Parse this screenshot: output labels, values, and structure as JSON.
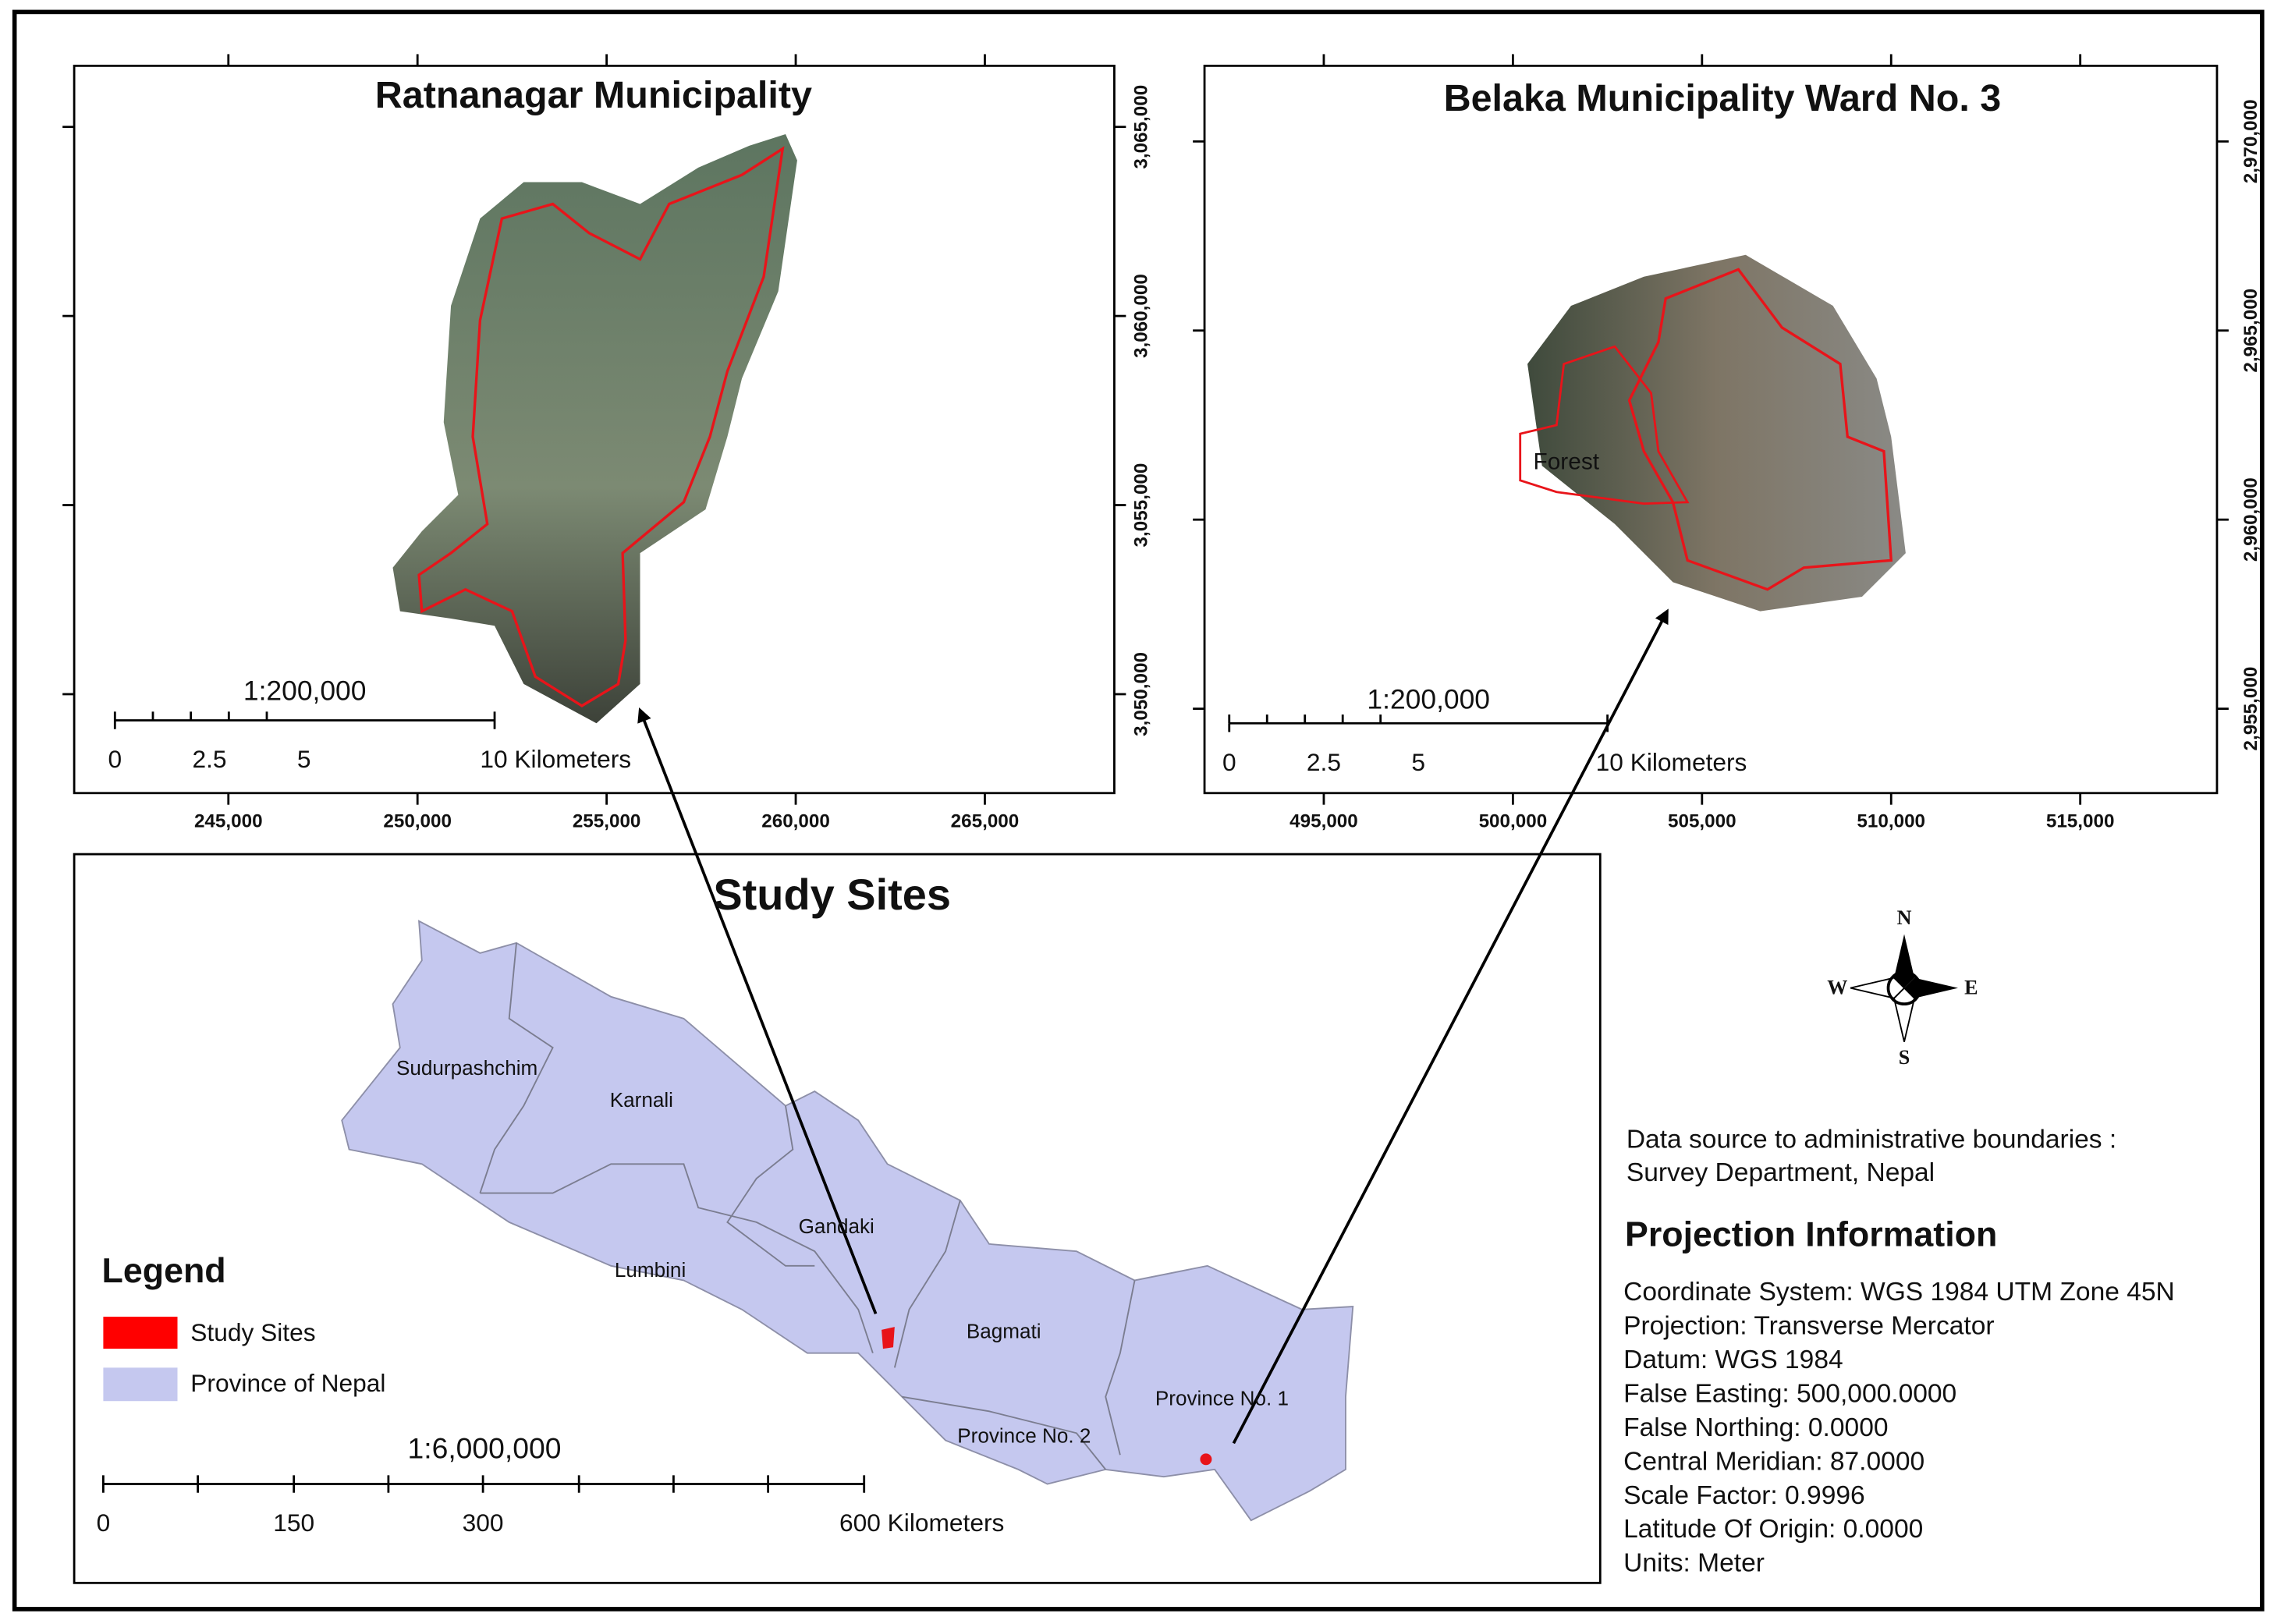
{
  "panels": [
    {
      "title": "Ratnanagar Municipality",
      "x_ticks": [
        "245,000",
        "250,000",
        "255,000",
        "260,000",
        "265,000"
      ],
      "y_ticks": [
        "3,065,000",
        "3,060,000",
        "3,055,000",
        "3,050,000"
      ],
      "scale": "1:200,000",
      "scale_labels": [
        "0",
        "2.5",
        "5",
        "10 Kilometers"
      ]
    },
    {
      "title": "Belaka Municipality Ward No. 3",
      "x_ticks": [
        "495,000",
        "500,000",
        "505,000",
        "510,000",
        "515,000"
      ],
      "y_ticks": [
        "2,970,000",
        "2,965,000",
        "2,960,000",
        "2,955,000"
      ],
      "scale": "1:200,000",
      "scale_labels": [
        "0",
        "2.5",
        "5",
        "10 Kilometers"
      ],
      "label": "Forest"
    }
  ],
  "main_map": {
    "title": "Study Sites",
    "provinces": [
      "Sudurpashchim",
      "Karnali",
      "Gandaki",
      "Lumbini",
      "Bagmati",
      "Province No. 1",
      "Province No. 2"
    ],
    "scale": "1:6,000,000",
    "scale_labels": [
      "0",
      "150",
      "300",
      "600 Kilometers"
    ]
  },
  "legend": {
    "title": "Legend",
    "items": [
      "Study Sites",
      "Province of Nepal"
    ]
  },
  "north_arrow": {
    "n": "N",
    "e": "E",
    "s": "S",
    "w": "W"
  },
  "data_source": [
    "Data source to administrative boundaries :",
    "Survey Department, Nepal"
  ],
  "projection": {
    "title": "Projection Information",
    "lines": [
      "Coordinate System: WGS 1984 UTM Zone 45N",
      "Projection: Transverse Mercator",
      "Datum: WGS 1984",
      "False Easting: 500,000.0000",
      "False Northing: 0.0000",
      "Central Meridian: 87.0000",
      "Scale Factor: 0.9996",
      "Latitude Of Origin: 0.0000",
      "Units: Meter"
    ]
  }
}
